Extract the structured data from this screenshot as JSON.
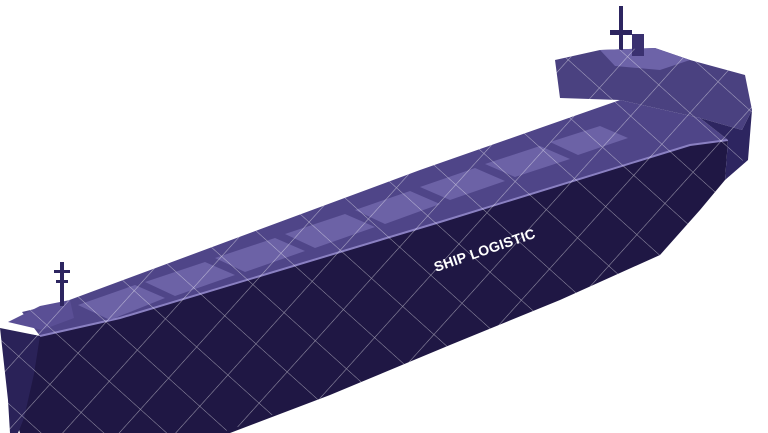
{
  "scene": {
    "hull_marking": "SHIP LOGISTIC"
  },
  "colors": {
    "hull_dark": "#1f1744",
    "hull_mid": "#2d2560",
    "deck": "#5a4f95",
    "deck_light": "#7a6fb4",
    "hatch": "#6c62a6",
    "superstructure": "#4a4180",
    "wireframe": "#ffffff"
  }
}
